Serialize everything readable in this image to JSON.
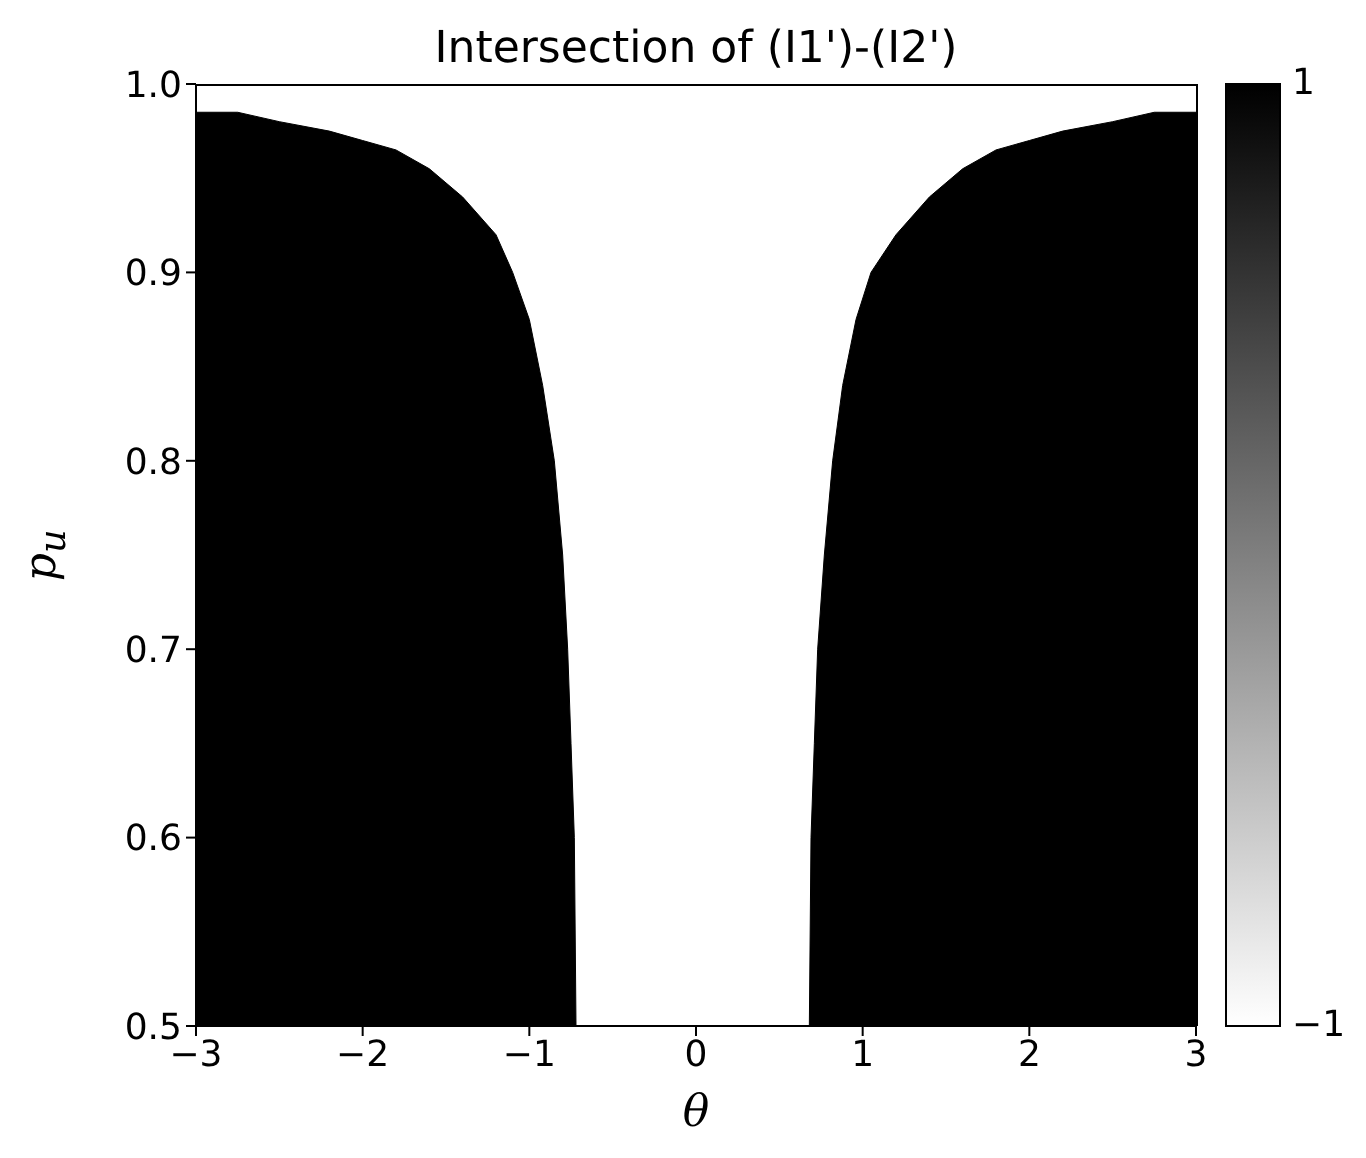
{
  "chart_data": {
    "type": "area",
    "title": "Intersection of (I1')-(I2')",
    "xlabel": "θ",
    "ylabel": "p$_{u}$",
    "xlim": [
      -3,
      3
    ],
    "xticks": [
      {
        "value": -3,
        "label": "−3"
      },
      {
        "value": -2,
        "label": "−2"
      },
      {
        "value": -1,
        "label": "−1"
      },
      0,
      1,
      2,
      3
    ],
    "ylim": [
      0.5,
      1.0
    ],
    "yticks": [
      0.5,
      0.6,
      0.7,
      0.8,
      0.9,
      {
        "value": 1.0,
        "label": "1.0"
      }
    ],
    "clim": [
      -1,
      1
    ],
    "cticks": [
      {
        "value": -1,
        "label": "−1"
      },
      1
    ],
    "grid": false,
    "series": [
      {
        "color": "#000000",
        "x": [
          -3.0,
          -2.75,
          -2.5,
          -2.2,
          -2.0,
          -1.8,
          -1.6,
          -1.4,
          -1.2,
          -1.1,
          -1.0,
          -0.92,
          -0.85,
          -0.8,
          -0.77,
          -0.75,
          -0.73,
          -0.72
        ],
        "values": [
          0.985,
          0.985,
          0.98,
          0.975,
          0.97,
          0.965,
          0.955,
          0.94,
          0.92,
          0.9,
          0.875,
          0.84,
          0.8,
          0.75,
          0.7,
          0.65,
          0.6,
          0.5
        ]
      },
      {
        "color": "#000000",
        "x": [
          0.68,
          0.69,
          0.71,
          0.73,
          0.77,
          0.82,
          0.88,
          0.96,
          1.05,
          1.2,
          1.4,
          1.6,
          1.8,
          2.0,
          2.2,
          2.5,
          2.75,
          3.0
        ],
        "values": [
          0.5,
          0.6,
          0.65,
          0.7,
          0.75,
          0.8,
          0.84,
          0.875,
          0.9,
          0.92,
          0.94,
          0.955,
          0.965,
          0.97,
          0.975,
          0.98,
          0.985,
          0.985
        ]
      }
    ]
  }
}
